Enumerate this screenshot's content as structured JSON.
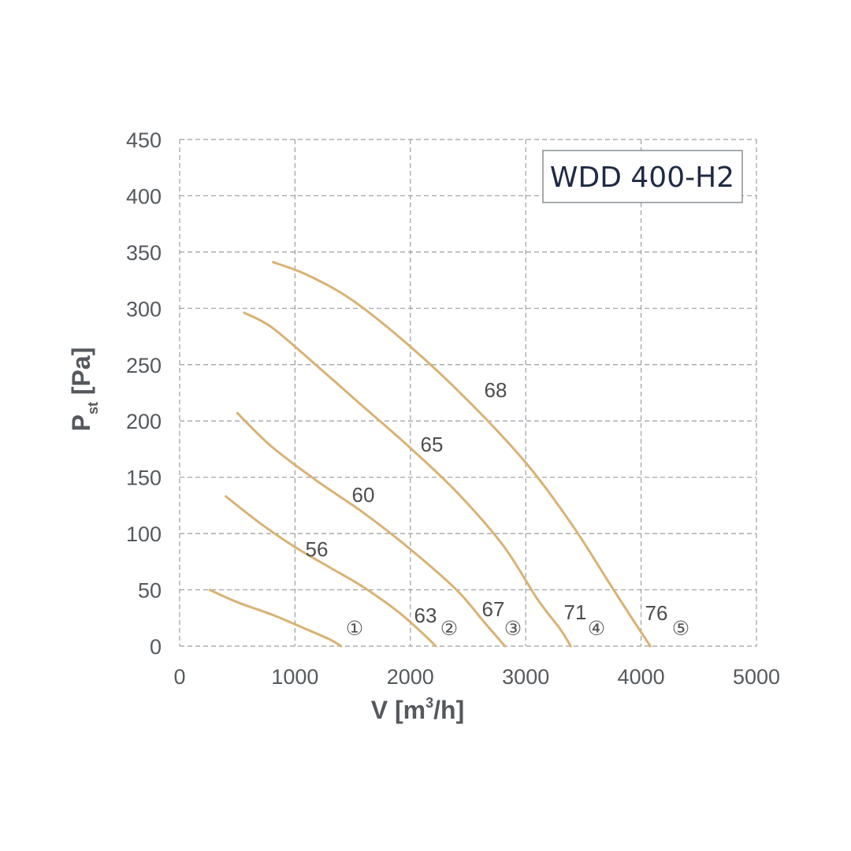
{
  "chart_data": {
    "type": "line",
    "model_label": "WDD 400-H2",
    "xlabel": {
      "main": "V [m",
      "sup": "3",
      "tail": "/h]"
    },
    "ylabel": {
      "main": "P",
      "sub": "st",
      "tail": " [Pa]"
    },
    "xlim": [
      0,
      5000
    ],
    "ylim": [
      0,
      450
    ],
    "xticks": [
      "0",
      "1000",
      "2000",
      "3000",
      "4000",
      "5000"
    ],
    "yticks": [
      "0",
      "50",
      "100",
      "150",
      "200",
      "250",
      "300",
      "350",
      "400",
      "450"
    ],
    "grid": true,
    "curve_color": "#d9b274",
    "series": [
      {
        "marker": "①",
        "labels": [],
        "points": [
          [
            260,
            50
          ],
          [
            500,
            39
          ],
          [
            800,
            28
          ],
          [
            1100,
            15
          ],
          [
            1300,
            6
          ],
          [
            1400,
            0
          ]
        ]
      },
      {
        "marker": "②",
        "labels": [
          "56",
          "63"
        ],
        "points": [
          [
            400,
            133
          ],
          [
            700,
            109
          ],
          [
            1000,
            88
          ],
          [
            1300,
            70
          ],
          [
            1600,
            52
          ],
          [
            1900,
            30
          ],
          [
            2100,
            12
          ],
          [
            2220,
            0
          ]
        ]
      },
      {
        "marker": "③",
        "labels": [
          "60",
          "67"
        ],
        "points": [
          [
            500,
            207
          ],
          [
            800,
            177
          ],
          [
            1200,
            146
          ],
          [
            1600,
            118
          ],
          [
            2000,
            86
          ],
          [
            2400,
            50
          ],
          [
            2650,
            20
          ],
          [
            2820,
            0
          ]
        ]
      },
      {
        "marker": "④",
        "labels": [
          "65",
          "71"
        ],
        "points": [
          [
            560,
            296
          ],
          [
            800,
            283
          ],
          [
            1200,
            248
          ],
          [
            1600,
            212
          ],
          [
            2000,
            176
          ],
          [
            2400,
            137
          ],
          [
            2800,
            90
          ],
          [
            3100,
            42
          ],
          [
            3300,
            15
          ],
          [
            3390,
            0
          ]
        ]
      },
      {
        "marker": "⑤",
        "labels": [
          "68",
          "76"
        ],
        "points": [
          [
            810,
            341
          ],
          [
            1100,
            330
          ],
          [
            1500,
            307
          ],
          [
            2000,
            266
          ],
          [
            2500,
            218
          ],
          [
            3000,
            163
          ],
          [
            3400,
            108
          ],
          [
            3700,
            60
          ],
          [
            3900,
            28
          ],
          [
            4080,
            0
          ]
        ]
      }
    ]
  }
}
